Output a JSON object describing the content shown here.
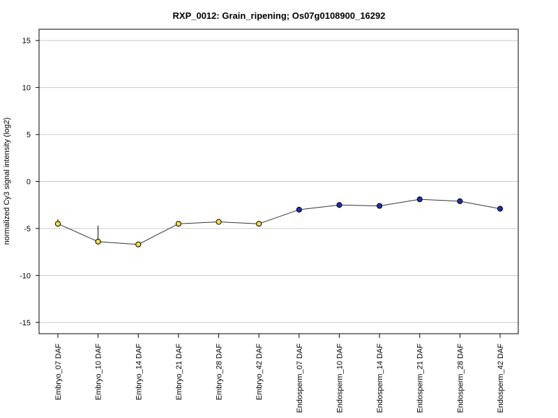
{
  "chart_data": {
    "type": "line",
    "title": "RXP_0012: Grain_ripening; Os07g0108900_16292",
    "xlabel": "",
    "ylabel": "normalized Cy3 signal intensity (log2)",
    "ylim": [
      -16.2,
      16.2
    ],
    "yticks": [
      15,
      10,
      5,
      0,
      -5,
      -10,
      -15
    ],
    "grid": true,
    "categories": [
      "Embryo_07 DAF",
      "Embryo_10 DAF",
      "Embryo_14 DAF",
      "Embryo_21 DAF",
      "Embryo_28 DAF",
      "Embryo_42 DAF",
      "Endosperm_07 DAF",
      "Endosperm_10 DAF",
      "Endosperm_14 DAF",
      "Endosperm_21 DAF",
      "Endosperm_28 DAF",
      "Endosperm_42 DAF"
    ],
    "values": [
      -4.5,
      -6.4,
      -6.7,
      -4.5,
      -4.3,
      -4.5,
      -3.0,
      -2.5,
      -2.6,
      -1.9,
      -2.1,
      -2.9
    ],
    "error_high": [
      -4.0,
      -4.7,
      -6.5,
      -4.4,
      -4.2,
      -4.4,
      -2.9,
      -2.3,
      -2.5,
      -1.8,
      -2.0,
      -2.7
    ],
    "error_low": [
      -4.8,
      -6.5,
      -6.9,
      -4.6,
      -4.4,
      -4.6,
      -3.1,
      -2.7,
      -2.7,
      -2.0,
      -2.2,
      -3.1
    ],
    "point_colors": [
      "#f0e040",
      "#f0e040",
      "#f0e040",
      "#f0e040",
      "#f0e040",
      "#f0e040",
      "#1a2fb0",
      "#1a2fb0",
      "#1a2fb0",
      "#1a2fb0",
      "#1a2fb0",
      "#1a2fb0"
    ],
    "line_color": "#333333",
    "grid_color": "#c8c8c8"
  }
}
